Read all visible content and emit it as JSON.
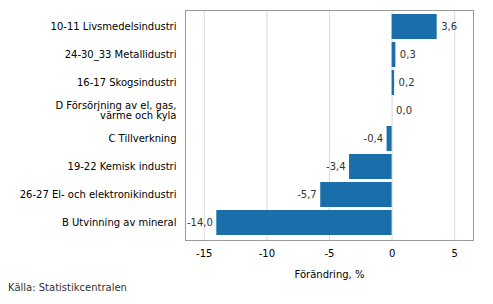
{
  "chart_data": {
    "type": "bar",
    "orientation": "horizontal",
    "categories": [
      "B Utvinning av mineral",
      "26-27 El- och elektronikindustri",
      "19-22 Kemisk industri",
      "C Tillverkning",
      "D Försörjning av el, gas,\nvärme och kyla",
      "16-17 Skogsindustri",
      "24-30_33 Metallidustri",
      "10-11 Livsmedelsindustri"
    ],
    "values": [
      -14.0,
      -5.7,
      -3.4,
      -0.4,
      0.0,
      0.2,
      0.3,
      3.6
    ],
    "value_labels": [
      "-14,0",
      "-5,7",
      "-3,4",
      "-0,4",
      "0,0",
      "0,2",
      "0,3",
      "3,6"
    ],
    "data_labels": true,
    "color": "#1a6faa",
    "xlabel": "Förändring, %",
    "xlim": [
      -16.5,
      6.5
    ],
    "xticks": [
      -15,
      -10,
      -5,
      0,
      5
    ],
    "grid": true,
    "footnote": "Källa: Statistikcentralen"
  }
}
